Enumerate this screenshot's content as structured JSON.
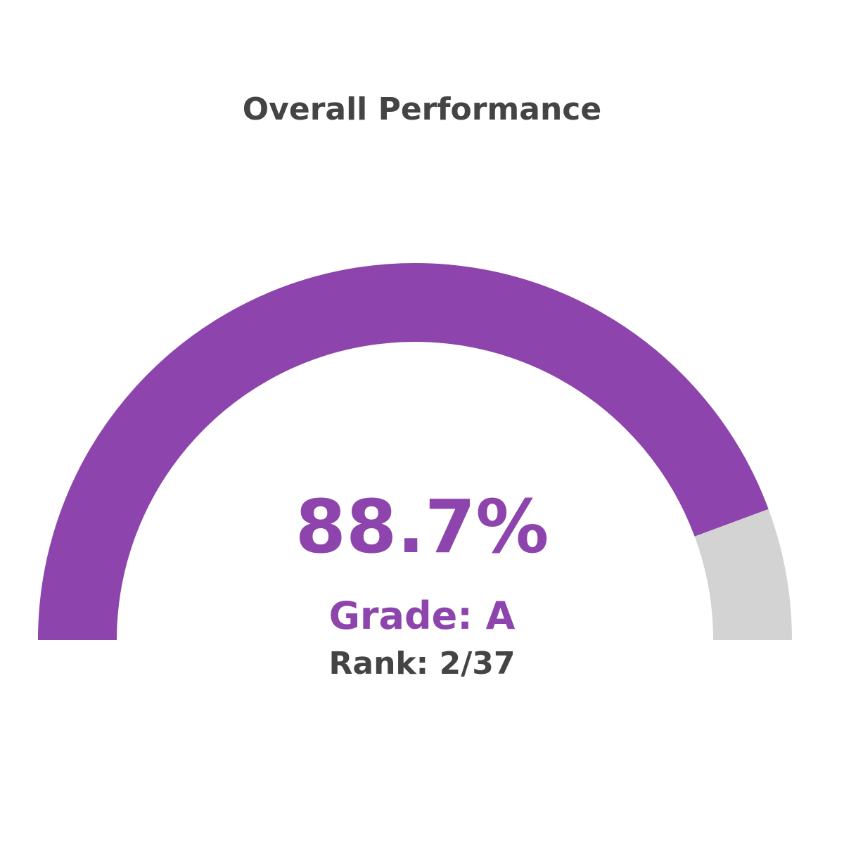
{
  "chart_data": {
    "type": "gauge",
    "title": "Overall Performance",
    "value": 88.7,
    "value_label": "88.7%",
    "range": [
      0,
      100
    ],
    "grade_label": "Grade: A",
    "rank_label": "Rank: 2/37",
    "colors": {
      "fill": "#8e44ad",
      "track": "#d3d3d3",
      "title_text": "#444444",
      "value_text": "#8e44ad",
      "rank_text": "#444444"
    }
  }
}
